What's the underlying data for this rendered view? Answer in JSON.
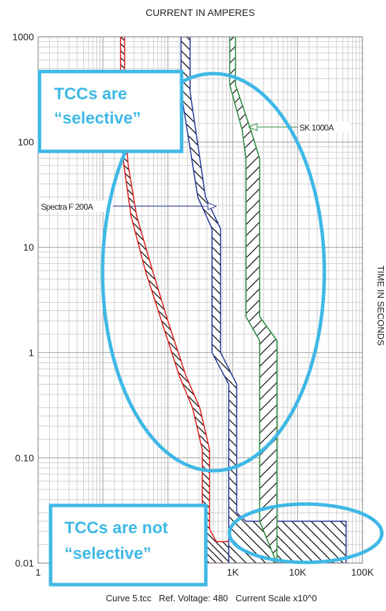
{
  "chart_data": {
    "type": "line",
    "title": "CURRENT IN AMPERES",
    "xlabel": "",
    "ylabel": "TIME IN SECONDS",
    "x_scale": "log",
    "y_scale": "log",
    "xlim": [
      1,
      100000
    ],
    "ylim": [
      0.01,
      1000
    ],
    "x_tick_labels": [
      {
        "value": 1,
        "label": "1"
      },
      {
        "value": 1000,
        "label": "1K"
      },
      {
        "value": 10000,
        "label": "10K"
      },
      {
        "value": 100000,
        "label": "100K"
      }
    ],
    "y_tick_labels": [
      {
        "value": 1000,
        "label": "1000"
      },
      {
        "value": 100,
        "label": "100"
      },
      {
        "value": 10,
        "label": "10"
      },
      {
        "value": 1,
        "label": "1"
      },
      {
        "value": 0.1,
        "label": "0.10"
      },
      {
        "value": 0.01,
        "label": "0.01"
      }
    ],
    "grid": true,
    "footer": "Curve 5.tcc   Ref. Voltage: 480   Current Scale x10^0",
    "series": [
      {
        "name": "",
        "color": "#e02020",
        "left": [
          [
            18.7,
            1000
          ],
          [
            18.7,
            160
          ],
          [
            21,
            60
          ],
          [
            27,
            20
          ],
          [
            45,
            6
          ],
          [
            80,
            2
          ],
          [
            150,
            0.6
          ],
          [
            240,
            0.3
          ],
          [
            340,
            0.12
          ],
          [
            340,
            0.01
          ]
        ],
        "right": [
          [
            21.5,
            1000
          ],
          [
            21.5,
            160
          ],
          [
            24.5,
            60
          ],
          [
            33,
            20
          ],
          [
            58,
            6
          ],
          [
            100,
            2
          ],
          [
            190,
            0.6
          ],
          [
            310,
            0.3
          ],
          [
            440,
            0.12
          ],
          [
            440,
            0.021
          ],
          [
            560,
            0.016
          ],
          [
            1600,
            0.016
          ],
          [
            1600,
            0.01
          ]
        ]
      },
      {
        "name": "Spectra F 200A",
        "color": "#2a3a9a",
        "left": [
          [
            160,
            1000
          ],
          [
            160,
            300
          ],
          [
            290,
            30
          ],
          [
            480,
            15
          ],
          [
            480,
            1
          ],
          [
            870,
            0.5
          ],
          [
            870,
            0.01
          ]
        ],
        "right": [
          [
            220,
            1000
          ],
          [
            220,
            300
          ],
          [
            380,
            30
          ],
          [
            650,
            15
          ],
          [
            650,
            1
          ],
          [
            1150,
            0.5
          ],
          [
            1150,
            0.03
          ],
          [
            1600,
            0.025
          ],
          [
            56000,
            0.025
          ],
          [
            56000,
            0.01
          ]
        ]
      },
      {
        "name": "SK 1000A",
        "color": "#2a8a3a",
        "left": [
          [
            900,
            1000
          ],
          [
            900,
            350
          ],
          [
            1400,
            130
          ],
          [
            1600,
            70
          ],
          [
            1600,
            2.2
          ],
          [
            2600,
            1.3
          ],
          [
            2600,
            0.025
          ]
        ],
        "right": [
          [
            1100,
            1000
          ],
          [
            1100,
            350
          ],
          [
            1900,
            130
          ],
          [
            2600,
            70
          ],
          [
            2600,
            2.2
          ],
          [
            4800,
            1.3
          ],
          [
            4800,
            0.01
          ]
        ]
      }
    ],
    "annotations": [
      {
        "text": "Spectra F 200A",
        "points_to": "Spectra F 200A"
      },
      {
        "text": "SK 1000A",
        "points_to": "SK 1000A"
      }
    ],
    "callouts": [
      {
        "text": "TCCs are “selective”",
        "lines": [
          "TCCs are",
          "“selective”"
        ],
        "color": "#3fb8e6"
      },
      {
        "text": "TCCs are not “selective”",
        "lines": [
          "TCCs are not",
          "“selective”"
        ],
        "color": "#3fb8e6"
      }
    ]
  }
}
